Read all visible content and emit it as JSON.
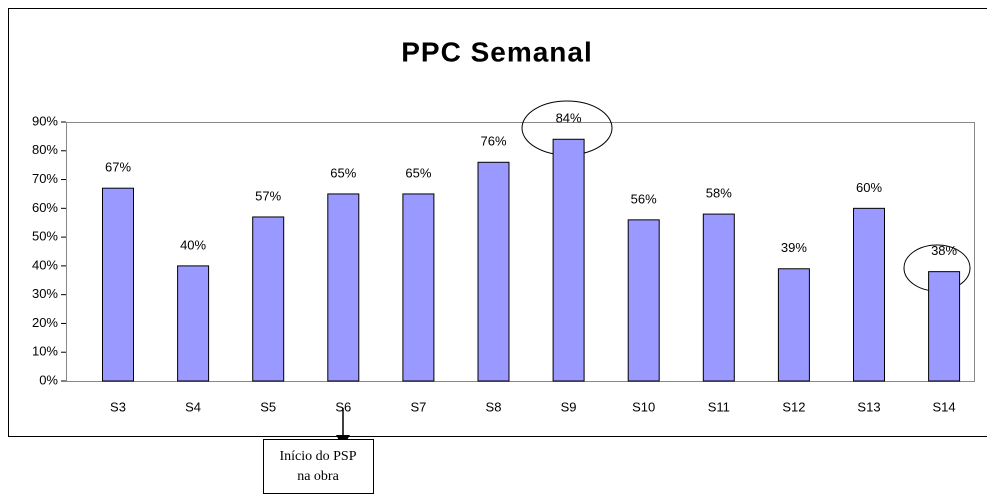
{
  "chart_data": {
    "type": "bar",
    "title": "PPC Semanal",
    "categories": [
      "S3",
      "S4",
      "S5",
      "S6",
      "S7",
      "S8",
      "S9",
      "S10",
      "S11",
      "S12",
      "S13",
      "S14"
    ],
    "values": [
      67,
      40,
      57,
      65,
      65,
      76,
      84,
      56,
      58,
      39,
      60,
      38
    ],
    "value_labels": [
      "67%",
      "40%",
      "57%",
      "65%",
      "65%",
      "76%",
      "84%",
      "56%",
      "58%",
      "39%",
      "60%",
      "38%"
    ],
    "color": "#9999ff",
    "ylim": [
      0,
      90
    ],
    "yticks": [
      {
        "value": 0,
        "label": "0%"
      },
      {
        "value": 10,
        "label": "10%"
      },
      {
        "value": 20,
        "label": "20%"
      },
      {
        "value": 30,
        "label": "30%"
      },
      {
        "value": 40,
        "label": "40%"
      },
      {
        "value": 50,
        "label": "50%"
      },
      {
        "value": 60,
        "label": "60%"
      },
      {
        "value": 70,
        "label": "70%"
      },
      {
        "value": 80,
        "label": "80%"
      },
      {
        "value": 90,
        "label": "90%"
      }
    ],
    "annotation": [
      "Início do PSP",
      "na obra"
    ]
  }
}
